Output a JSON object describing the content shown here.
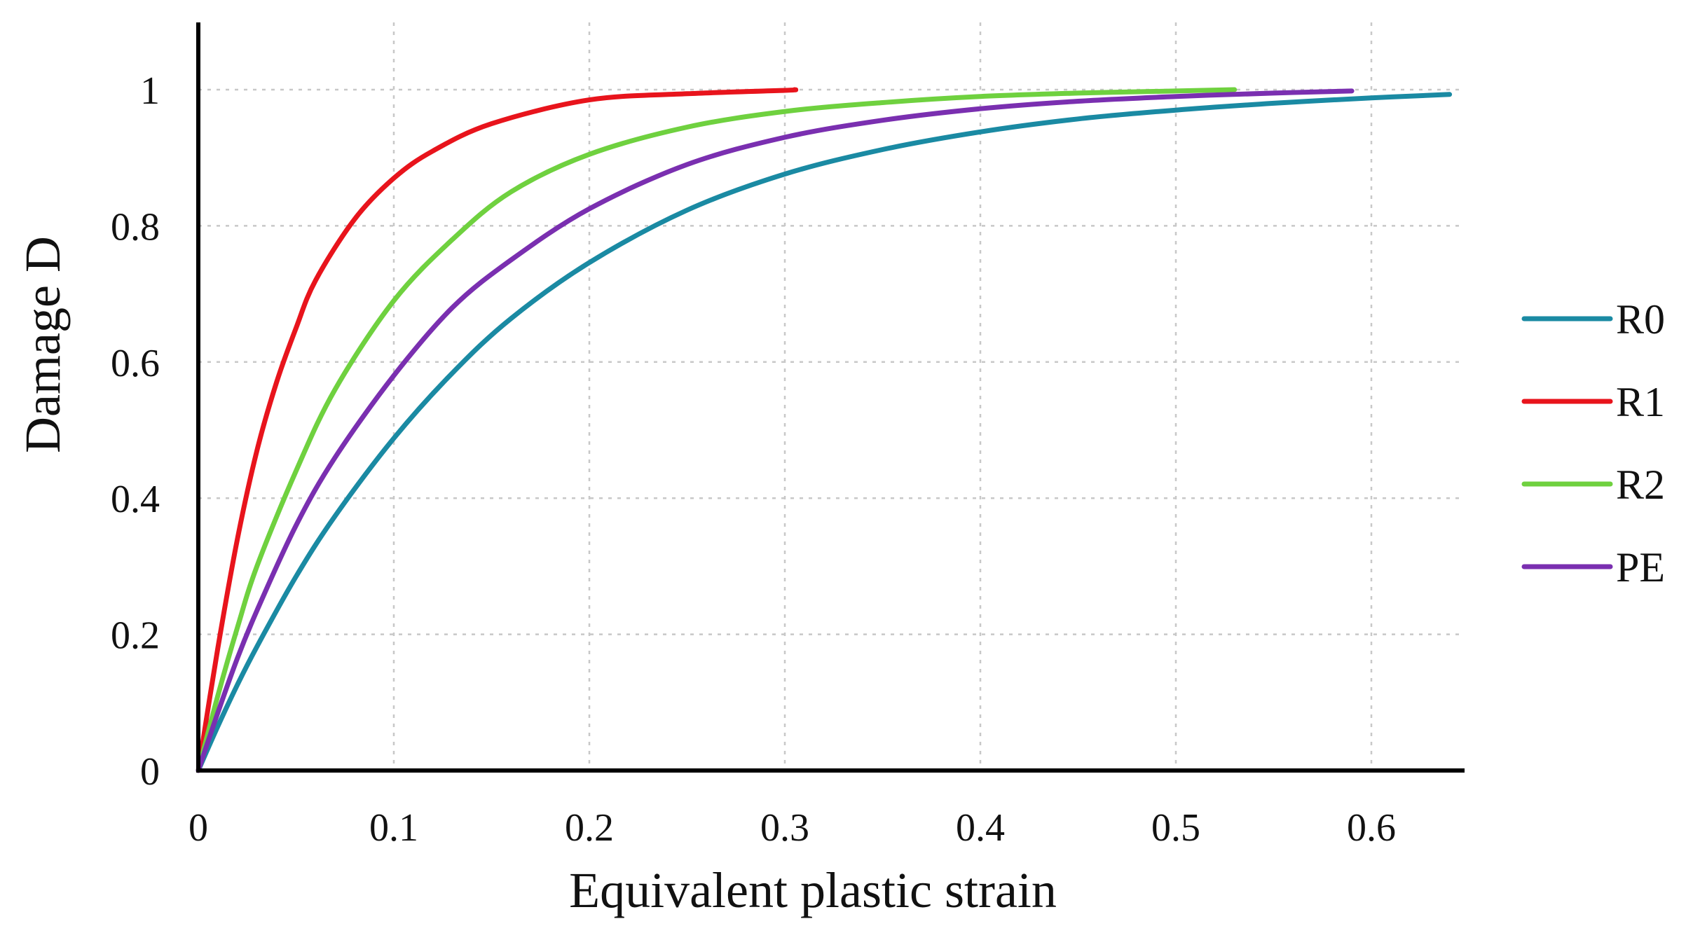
{
  "chart_data": {
    "type": "line",
    "title": "",
    "xlabel": "Equivalent plastic strain",
    "ylabel": "Damage D",
    "xlim": [
      0,
      0.65
    ],
    "ylim": [
      0,
      1.1
    ],
    "x_ticks": [
      0,
      0.1,
      0.2,
      0.3,
      0.4,
      0.5,
      0.6
    ],
    "x_tick_labels": [
      "0",
      "0.1",
      "0.2",
      "0.3",
      "0.4",
      "0.5",
      "0.6"
    ],
    "y_ticks": [
      0,
      0.2,
      0.4,
      0.6,
      0.8,
      1
    ],
    "y_tick_labels": [
      "0",
      "0.2",
      "0.4",
      "0.6",
      "0.8",
      "1"
    ],
    "grid": true,
    "legend_position": "right",
    "series": [
      {
        "name": "R0",
        "color": "#1a8aa3",
        "x": [
          0,
          0.01,
          0.02,
          0.03,
          0.05,
          0.07,
          0.1,
          0.13,
          0.16,
          0.2,
          0.25,
          0.3,
          0.35,
          0.4,
          0.45,
          0.5,
          0.55,
          0.6,
          0.64
        ],
        "y": [
          0,
          0.065,
          0.126,
          0.182,
          0.285,
          0.374,
          0.488,
          0.584,
          0.664,
          0.746,
          0.823,
          0.876,
          0.912,
          0.938,
          0.957,
          0.97,
          0.98,
          0.988,
          0.993
        ]
      },
      {
        "name": "R1",
        "color": "#e8141c",
        "x": [
          0,
          0.01,
          0.02,
          0.03,
          0.04,
          0.05,
          0.06,
          0.08,
          0.1,
          0.12,
          0.15,
          0.2,
          0.25,
          0.3,
          0.305
        ],
        "y": [
          0,
          0.18,
          0.34,
          0.47,
          0.57,
          0.65,
          0.72,
          0.81,
          0.87,
          0.91,
          0.95,
          0.985,
          0.994,
          0.999,
          1.0
        ]
      },
      {
        "name": "R2",
        "color": "#6fd13f",
        "x": [
          0,
          0.01,
          0.02,
          0.03,
          0.05,
          0.07,
          0.1,
          0.13,
          0.16,
          0.2,
          0.25,
          0.3,
          0.35,
          0.4,
          0.45,
          0.5,
          0.53
        ],
        "y": [
          0,
          0.11,
          0.21,
          0.3,
          0.44,
          0.56,
          0.69,
          0.78,
          0.85,
          0.905,
          0.945,
          0.968,
          0.981,
          0.99,
          0.995,
          0.998,
          1.0
        ]
      },
      {
        "name": "PE",
        "color": "#7a2fb0",
        "x": [
          0,
          0.01,
          0.02,
          0.03,
          0.05,
          0.07,
          0.1,
          0.13,
          0.16,
          0.2,
          0.25,
          0.3,
          0.35,
          0.4,
          0.45,
          0.5,
          0.55,
          0.59
        ],
        "y": [
          0,
          0.085,
          0.165,
          0.235,
          0.36,
          0.46,
          0.58,
          0.68,
          0.75,
          0.825,
          0.89,
          0.93,
          0.955,
          0.972,
          0.983,
          0.99,
          0.995,
          0.998
        ]
      }
    ]
  }
}
